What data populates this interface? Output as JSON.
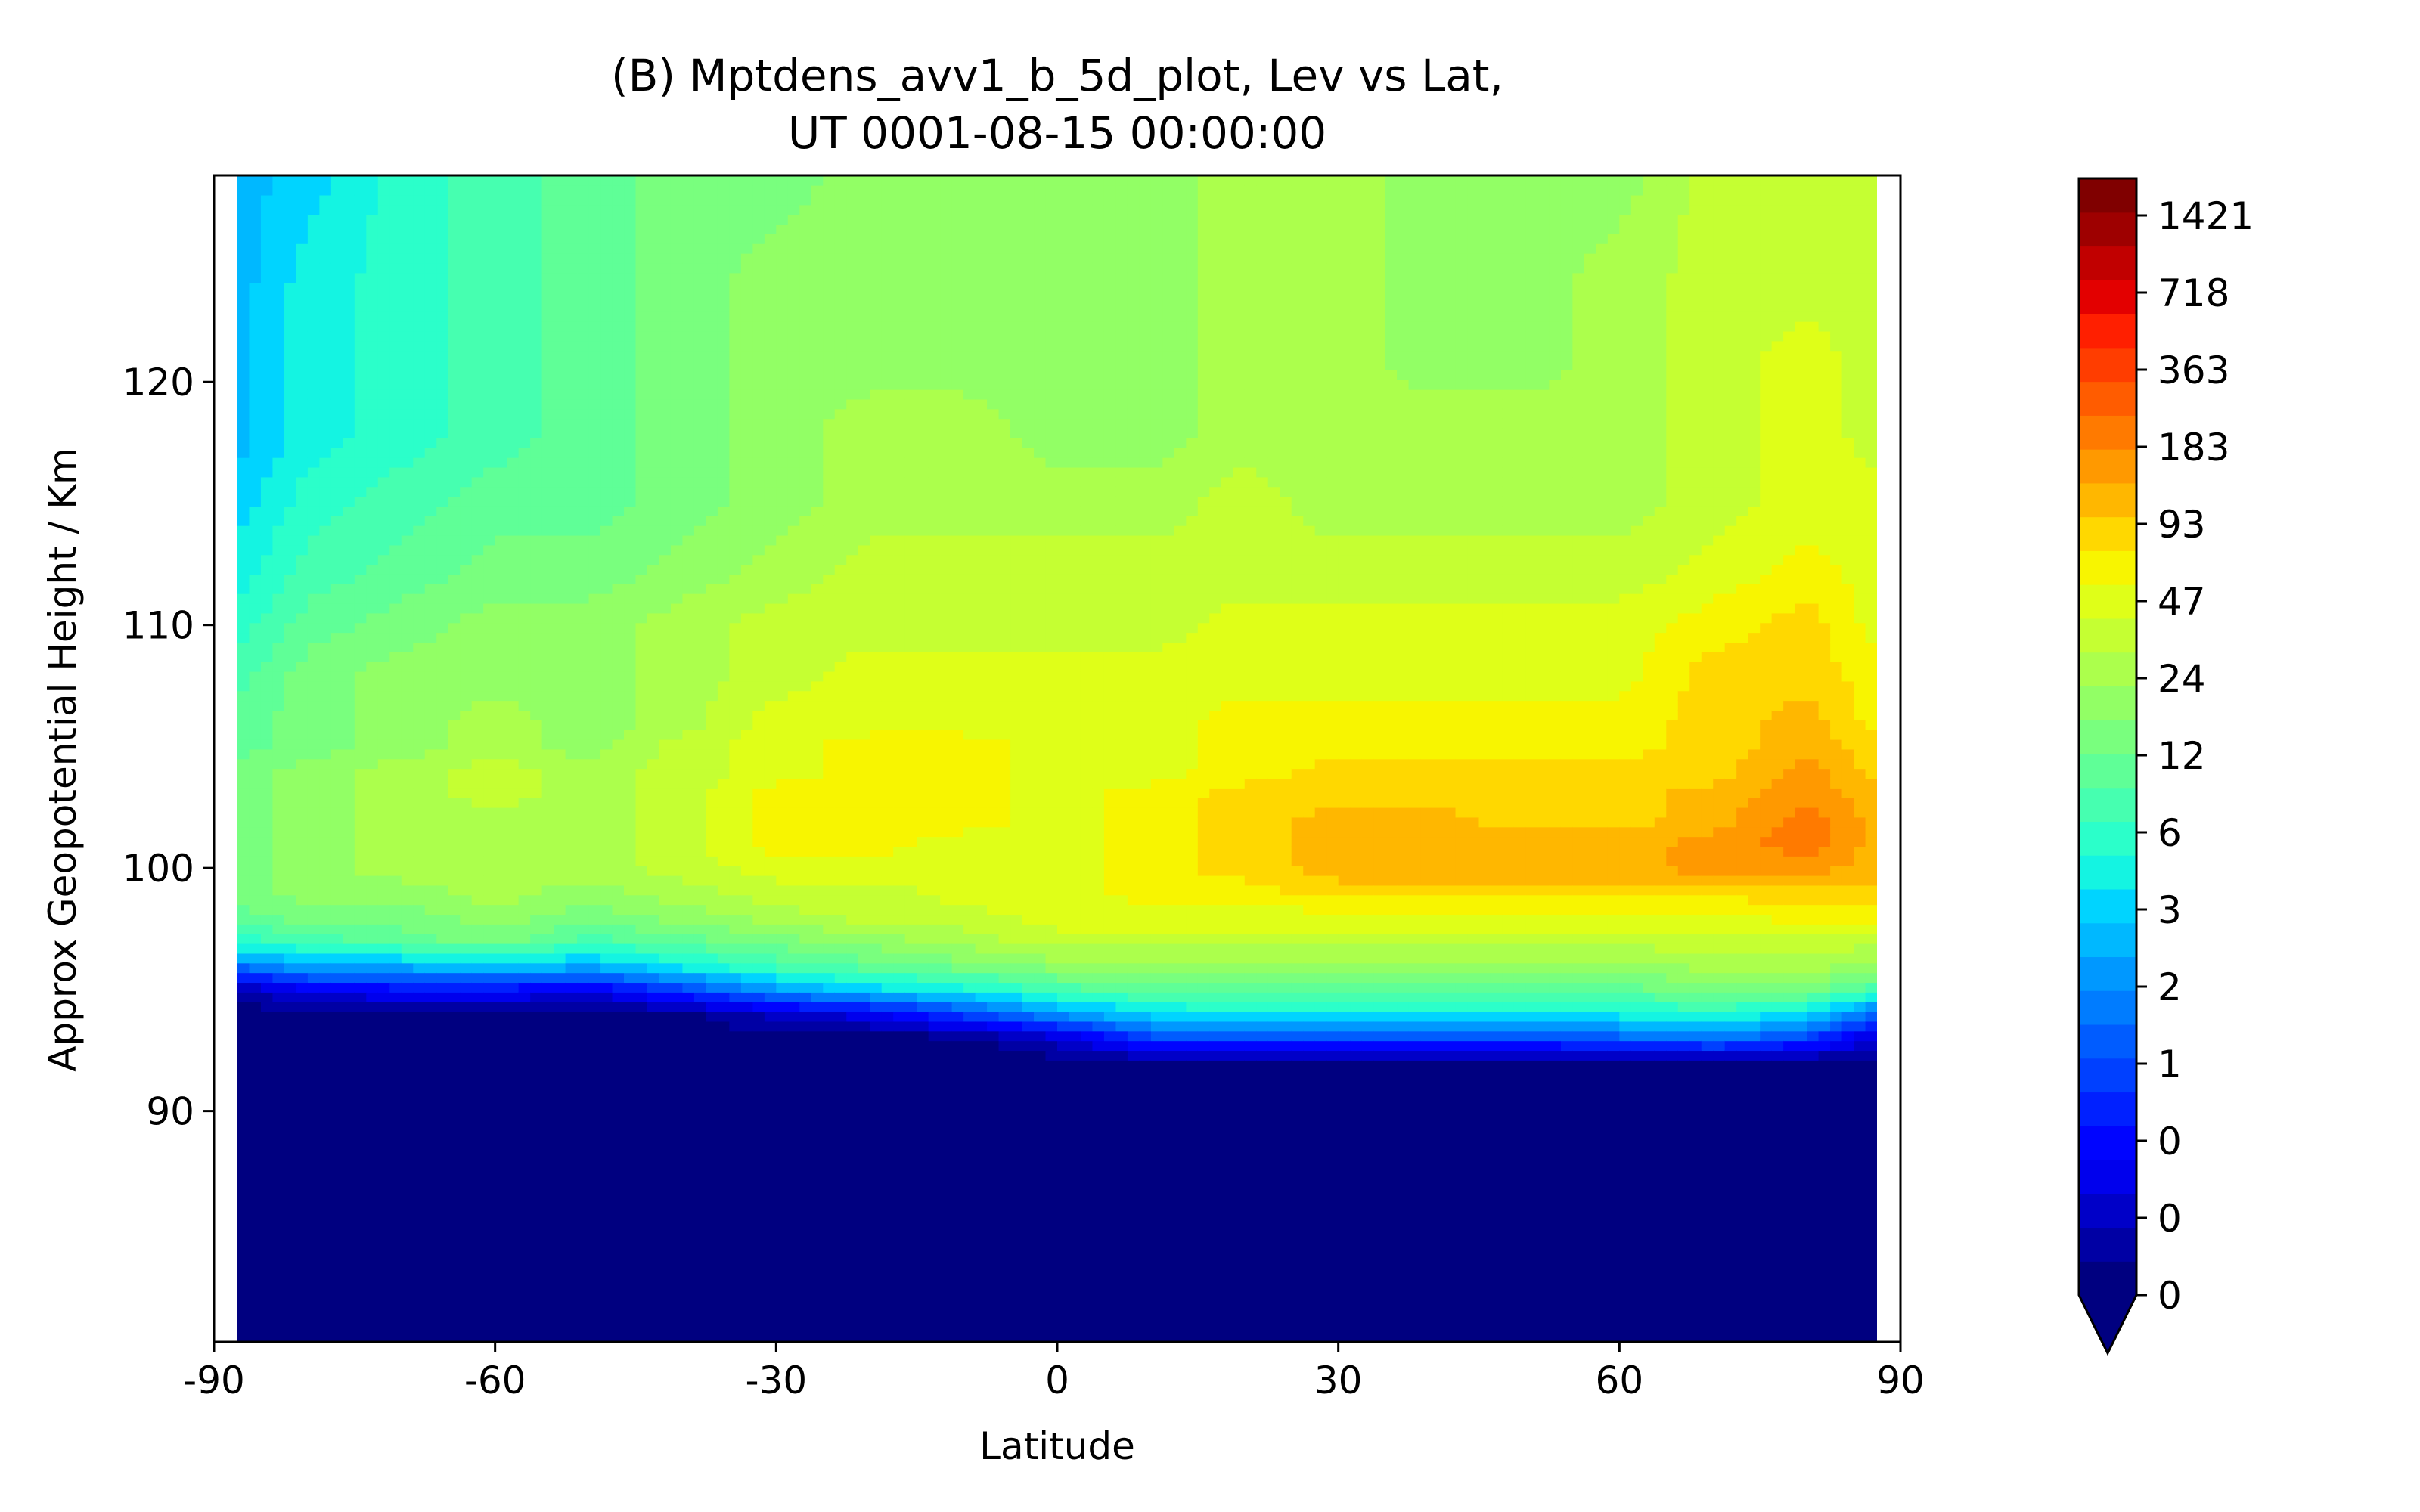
{
  "chart_data": {
    "type": "heatmap",
    "title": "(B) Mptdens_avv1_b_5d_plot, Lev vs Lat,",
    "subtitle": "UT 0001-08-15 00:00:00",
    "xlabel": "Latitude",
    "ylabel": "Approx Geopotential Height / Km",
    "xlim": [
      -90,
      90
    ],
    "ylim": [
      80.5,
      128.5
    ],
    "data_xlim": [
      -87.5,
      87.5
    ],
    "x_ticks": [
      "-90",
      "-60",
      "-30",
      "0",
      "30",
      "60",
      "90"
    ],
    "x_tick_values": [
      -90,
      -60,
      -30,
      0,
      30,
      60,
      90
    ],
    "y_ticks": [
      "90",
      "100",
      "110",
      "120"
    ],
    "y_tick_values": [
      90,
      100,
      110,
      120
    ],
    "grid": false,
    "colormap": "jet",
    "colorbar": {
      "levels": 29,
      "extend": "min",
      "tick_labels": [
        "0",
        "0",
        "0",
        "1",
        "2",
        "3",
        "6",
        "12",
        "24",
        "47",
        "93",
        "183",
        "363",
        "718",
        "1421"
      ],
      "colors": [
        "#000080",
        "#0000a4",
        "#0000c8",
        "#0000ed",
        "#0004ff",
        "#0020ff",
        "#0040ff",
        "#005cff",
        "#007cff",
        "#0098ff",
        "#00b8ff",
        "#00d4ff",
        "#14f4e2",
        "#2bffca",
        "#46ffb0",
        "#5fff97",
        "#79ff7e",
        "#92ff65",
        "#acff4c",
        "#c5ff32",
        "#dfff18",
        "#f8f500",
        "#ffd800",
        "#ffb700",
        "#ff9900",
        "#ff7a00",
        "#ff5c00",
        "#ff3d00",
        "#ff1f00",
        "#e30000",
        "#c10000",
        "#9e0000",
        "#800000"
      ],
      "under_color": "#000080"
    },
    "x": [
      -87.5,
      -80,
      -70,
      -60,
      -50,
      -40,
      -30,
      -20,
      -10,
      0,
      10,
      20,
      30,
      40,
      50,
      60,
      70,
      80,
      87.5
    ],
    "y": [
      80.5,
      90,
      92,
      93,
      94,
      95,
      96,
      97,
      98,
      99,
      100,
      101,
      102,
      103,
      104,
      105,
      106,
      108,
      110,
      112,
      115,
      118,
      121,
      124,
      128.5
    ],
    "level_index": [
      [
        0,
        0,
        0,
        0,
        0,
        0,
        0,
        0,
        0,
        0,
        0,
        0,
        0,
        0,
        0,
        0,
        0,
        0,
        0
      ],
      [
        0,
        0,
        0,
        0,
        0,
        0,
        0,
        0,
        0,
        0,
        0,
        0,
        0,
        0,
        0,
        0,
        0,
        0,
        0
      ],
      [
        0,
        0,
        0,
        0,
        0,
        0,
        0,
        0,
        0,
        0,
        0,
        0,
        0,
        0,
        0,
        0,
        0,
        0,
        0
      ],
      [
        0,
        0,
        0,
        0,
        0,
        0,
        0,
        0,
        0,
        2,
        6,
        6,
        6,
        6,
        6,
        7,
        8,
        6,
        2
      ],
      [
        0,
        0,
        0,
        0,
        0,
        0,
        2,
        3,
        6,
        9,
        11,
        12,
        12,
        12,
        12,
        12,
        13,
        11,
        7
      ],
      [
        1,
        3,
        4,
        4,
        3,
        6,
        9,
        11,
        12,
        14,
        15,
        15,
        15,
        15,
        15,
        15,
        16,
        16,
        14
      ],
      [
        8,
        10,
        10,
        11,
        10,
        12,
        14,
        15,
        16,
        17,
        17,
        17,
        17,
        17,
        17,
        17,
        18,
        18,
        17
      ],
      [
        13,
        14,
        15,
        16,
        14,
        15,
        16,
        17,
        18,
        19,
        19,
        19,
        19,
        19,
        19,
        19,
        19,
        19,
        19
      ],
      [
        15,
        16,
        16,
        17,
        16,
        17,
        18,
        19,
        19,
        20,
        20,
        20,
        20,
        20,
        20,
        20,
        20,
        21,
        21
      ],
      [
        16,
        17,
        17,
        18,
        17,
        18,
        19,
        19,
        20,
        20,
        21,
        21,
        22,
        22,
        22,
        22,
        22,
        22,
        22
      ],
      [
        16,
        17,
        18,
        18,
        18,
        19,
        20,
        20,
        20,
        20,
        21,
        22,
        23,
        23,
        23,
        23,
        24,
        24,
        23
      ],
      [
        16,
        17,
        18,
        18,
        18,
        19,
        21,
        21,
        20,
        20,
        21,
        22,
        23,
        23,
        23,
        23,
        24,
        25,
        23
      ],
      [
        16,
        17,
        18,
        18,
        18,
        19,
        21,
        21,
        21,
        20,
        21,
        22,
        23,
        23,
        22,
        22,
        23,
        25,
        23
      ],
      [
        16,
        17,
        18,
        19,
        18,
        19,
        21,
        21,
        21,
        20,
        21,
        22,
        22,
        22,
        22,
        22,
        23,
        24,
        23
      ],
      [
        16,
        17,
        18,
        19,
        18,
        19,
        20,
        21,
        21,
        20,
        20,
        21,
        22,
        22,
        22,
        22,
        22,
        24,
        22
      ],
      [
        15,
        16,
        17,
        18,
        17,
        19,
        20,
        21,
        21,
        20,
        20,
        21,
        21,
        21,
        21,
        21,
        22,
        23,
        22
      ],
      [
        15,
        16,
        17,
        18,
        17,
        18,
        20,
        20,
        20,
        20,
        20,
        21,
        21,
        21,
        21,
        21,
        22,
        23,
        21
      ],
      [
        14,
        16,
        17,
        17,
        17,
        18,
        19,
        20,
        20,
        20,
        20,
        20,
        20,
        20,
        20,
        20,
        22,
        22,
        21
      ],
      [
        13,
        15,
        16,
        17,
        17,
        18,
        19,
        19,
        19,
        19,
        19,
        20,
        20,
        20,
        20,
        20,
        21,
        22,
        20
      ],
      [
        12,
        14,
        15,
        16,
        16,
        17,
        18,
        19,
        19,
        19,
        19,
        19,
        19,
        19,
        19,
        19,
        20,
        21,
        20
      ],
      [
        11,
        13,
        14,
        15,
        15,
        16,
        17,
        18,
        18,
        18,
        18,
        19,
        18,
        18,
        18,
        18,
        19,
        20,
        20
      ],
      [
        10,
        12,
        13,
        14,
        15,
        16,
        17,
        18,
        18,
        17,
        17,
        18,
        18,
        18,
        18,
        18,
        19,
        20,
        19
      ],
      [
        10,
        12,
        13,
        14,
        15,
        16,
        17,
        17,
        17,
        17,
        17,
        18,
        18,
        17,
        17,
        18,
        19,
        20,
        19
      ],
      [
        10,
        12,
        13,
        14,
        15,
        16,
        17,
        17,
        17,
        17,
        17,
        18,
        18,
        17,
        17,
        18,
        19,
        19,
        19
      ],
      [
        10,
        11,
        13,
        14,
        15,
        16,
        16,
        17,
        17,
        17,
        17,
        18,
        18,
        17,
        17,
        17,
        19,
        19,
        19
      ]
    ]
  }
}
